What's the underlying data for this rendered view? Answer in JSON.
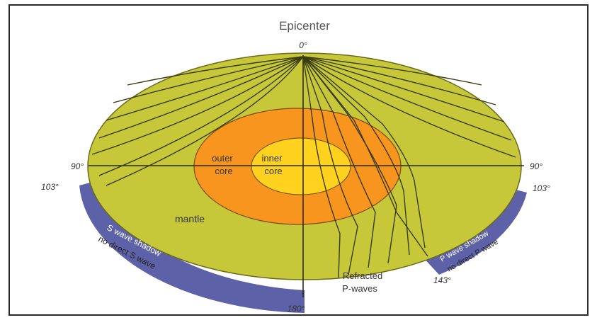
{
  "title": "Epicenter",
  "degree_labels": {
    "top": "0°",
    "left": "90°",
    "right": "90°",
    "left_shadow_edge": "103°",
    "right_shadow_edge": "103°",
    "right_lower": "143°",
    "bottom": "180°"
  },
  "layers": {
    "mantle": "mantle",
    "outer_core_line1": "outer",
    "outer_core_line2": "core",
    "inner_core_line1": "inner",
    "inner_core_line2": "core"
  },
  "shadow_zones": {
    "s_wave_line1": "S wave shadow",
    "s_wave_line2": "no direct S wave",
    "p_wave_line1": "P wave shadow",
    "p_wave_line2": "no direct P wave"
  },
  "refracted": {
    "line1": "Refracted",
    "line2": "P-waves"
  },
  "colors": {
    "mantle": "#c6c83a",
    "outer_core": "#f7951e",
    "inner_core": "#ffd21f",
    "shadow_band": "#5d62a8",
    "ray_lines": "#3a3a10"
  }
}
